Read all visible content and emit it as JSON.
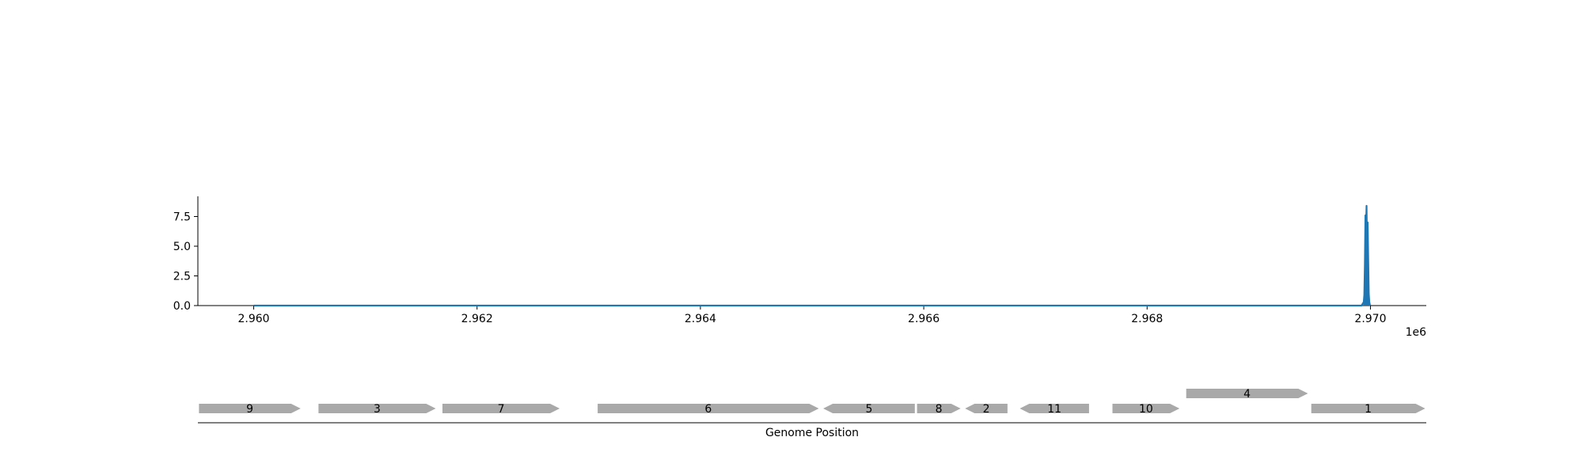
{
  "chart_data": [
    {
      "type": "line",
      "title": "",
      "xlabel": "",
      "ylabel": "",
      "x_offset_label": "1e6",
      "xlim": [
        2959500,
        2970500
      ],
      "ylim": [
        0,
        9.2
      ],
      "xticks": [
        2960000,
        2962000,
        2964000,
        2966000,
        2968000,
        2970000
      ],
      "xtick_labels": [
        "2.960",
        "2.962",
        "2.964",
        "2.966",
        "2.968",
        "2.970"
      ],
      "yticks": [
        0.0,
        2.5,
        5.0,
        7.5
      ],
      "ytick_labels": [
        "0.0",
        "2.5",
        "5.0",
        "7.5"
      ],
      "grid": false,
      "series": [
        {
          "color": "#1f77b4",
          "x": [
            2960000,
            2969920,
            2969940,
            2969945,
            2969950,
            2969955,
            2969960,
            2969965,
            2969970,
            2969975,
            2969980,
            2969985,
            2969990,
            2969995,
            2970000
          ],
          "y": [
            0,
            0,
            0.3,
            0.9,
            3.4,
            7.6,
            6.5,
            8.4,
            4.8,
            7.0,
            3.9,
            1.0,
            0.3,
            0.05,
            0
          ]
        }
      ]
    },
    {
      "type": "gene-map",
      "xlabel": "Genome Position",
      "xlim": [
        2959500,
        2970500
      ],
      "bar_color": "#a9a9a9",
      "genes": [
        {
          "label": "9",
          "start": 2959510,
          "end": 2960420,
          "strand": "+",
          "row": 0
        },
        {
          "label": "3",
          "start": 2960580,
          "end": 2961630,
          "strand": "+",
          "row": 0
        },
        {
          "label": "7",
          "start": 2961690,
          "end": 2962740,
          "strand": "+",
          "row": 0
        },
        {
          "label": "6",
          "start": 2963080,
          "end": 2965060,
          "strand": "+",
          "row": 0
        },
        {
          "label": "5",
          "start": 2965100,
          "end": 2965920,
          "strand": "-",
          "row": 0
        },
        {
          "label": "8",
          "start": 2965940,
          "end": 2966330,
          "strand": "+",
          "row": 0
        },
        {
          "label": "2",
          "start": 2966370,
          "end": 2966750,
          "strand": "-",
          "row": 0
        },
        {
          "label": "11",
          "start": 2966860,
          "end": 2967480,
          "strand": "-",
          "row": 0
        },
        {
          "label": "10",
          "start": 2967690,
          "end": 2968290,
          "strand": "+",
          "row": 0
        },
        {
          "label": "4",
          "start": 2968350,
          "end": 2969440,
          "strand": "+",
          "row": 1
        },
        {
          "label": "1",
          "start": 2969470,
          "end": 2970490,
          "strand": "+",
          "row": 0
        }
      ]
    }
  ]
}
